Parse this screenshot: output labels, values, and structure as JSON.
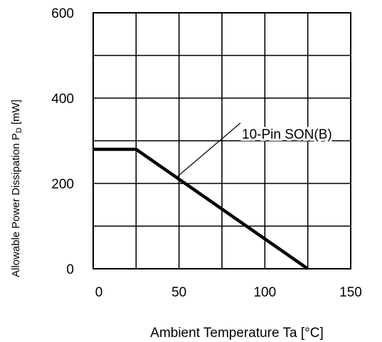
{
  "chart_data": {
    "type": "line",
    "xlabel": "Ambient Temperature  Ta [°C]",
    "ylabel_prefix": "Allowable Power Dissipation  P",
    "ylabel_sub": "D",
    "ylabel_suffix": " [mW]",
    "xlim": [
      0,
      150
    ],
    "ylim": [
      0,
      600
    ],
    "x_ticks": [
      0,
      50,
      100,
      150
    ],
    "y_ticks": [
      0,
      200,
      400,
      600
    ],
    "grid_x_step": 25,
    "grid_y_step": 100,
    "grid": true,
    "series": [
      {
        "name": "10-Pin SON(B)",
        "x": [
          0,
          25,
          125
        ],
        "y": [
          280,
          280,
          0
        ]
      }
    ],
    "annotation": {
      "text": "10-Pin SON(B)",
      "points_to": {
        "x": 50,
        "y": 210
      }
    }
  }
}
